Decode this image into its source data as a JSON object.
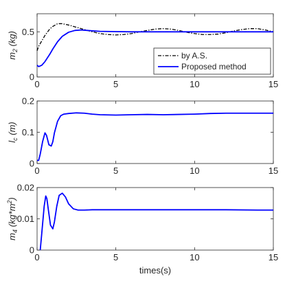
{
  "chart_data": [
    {
      "type": "line",
      "ylabel": {
        "base": "m",
        "sub": "2",
        "unit": " (kg)"
      },
      "xlabel": "",
      "xlim": [
        0,
        15
      ],
      "ylim": [
        0,
        0.7
      ],
      "xticks": [
        "0",
        "5",
        "10",
        "15"
      ],
      "xtick_values": [
        0,
        5,
        10,
        15
      ],
      "yticks": [
        "0",
        "0.5"
      ],
      "ytick_values": [
        0,
        0.5
      ],
      "legend": {
        "position": "bottom-right"
      },
      "series": [
        {
          "name": "by A.S.",
          "color": "#000000",
          "style": "dashdot",
          "x": [
            0,
            0.1,
            0.3,
            0.5,
            0.8,
            1.0,
            1.3,
            1.6,
            2.0,
            2.5,
            3.0,
            3.5,
            4.0,
            4.5,
            5.0,
            5.5,
            6.0,
            6.5,
            7.0,
            7.5,
            8.0,
            8.5,
            9.0,
            9.5,
            10.0,
            10.5,
            11.0,
            11.5,
            12.0,
            12.5,
            13.0,
            13.5,
            14.0,
            14.5,
            15.0
          ],
          "y": [
            0.29,
            0.34,
            0.4,
            0.46,
            0.53,
            0.56,
            0.59,
            0.59,
            0.575,
            0.55,
            0.525,
            0.5,
            0.48,
            0.47,
            0.465,
            0.47,
            0.48,
            0.5,
            0.515,
            0.53,
            0.535,
            0.53,
            0.515,
            0.495,
            0.48,
            0.47,
            0.47,
            0.475,
            0.49,
            0.51,
            0.525,
            0.535,
            0.535,
            0.52,
            0.5
          ]
        },
        {
          "name": "Proposed method",
          "color": "#0000ff",
          "style": "solid",
          "x": [
            0,
            0.1,
            0.3,
            0.5,
            0.8,
            1.0,
            1.3,
            1.6,
            2.0,
            2.4,
            2.8,
            3.2,
            3.6,
            4.0,
            5.0,
            6.0,
            7.0,
            8.0,
            9.0,
            10.0,
            11.0,
            12.0,
            13.0,
            14.0,
            15.0
          ],
          "y": [
            0.13,
            0.115,
            0.13,
            0.17,
            0.25,
            0.31,
            0.39,
            0.45,
            0.495,
            0.515,
            0.52,
            0.515,
            0.51,
            0.505,
            0.502,
            0.5,
            0.5,
            0.5,
            0.5,
            0.5,
            0.5,
            0.5,
            0.5,
            0.5,
            0.5
          ]
        }
      ]
    },
    {
      "type": "line",
      "ylabel": {
        "base": "l",
        "sub": "c",
        "unit": " (m)"
      },
      "xlabel": "",
      "xlim": [
        0,
        15
      ],
      "ylim": [
        0,
        0.2
      ],
      "xticks": [
        "0",
        "5",
        "10",
        "15"
      ],
      "xtick_values": [
        0,
        5,
        10,
        15
      ],
      "yticks": [
        "0",
        "0.1",
        "0.2"
      ],
      "ytick_values": [
        0,
        0.1,
        0.2
      ],
      "series": [
        {
          "color": "#0000ff",
          "style": "solid",
          "x": [
            0,
            0.1,
            0.2,
            0.35,
            0.5,
            0.6,
            0.75,
            0.9,
            1.0,
            1.1,
            1.3,
            1.5,
            1.7,
            2.0,
            2.5,
            3.0,
            3.5,
            4.0,
            5.0,
            6.0,
            7.0,
            8.0,
            9.0,
            10.0,
            11.0,
            12.0,
            13.0,
            14.0,
            15.0
          ],
          "y": [
            0.01,
            0.01,
            0.03,
            0.07,
            0.098,
            0.09,
            0.06,
            0.056,
            0.07,
            0.098,
            0.135,
            0.153,
            0.158,
            0.16,
            0.162,
            0.161,
            0.158,
            0.156,
            0.155,
            0.156,
            0.157,
            0.156,
            0.157,
            0.158,
            0.16,
            0.161,
            0.161,
            0.161,
            0.161
          ]
        }
      ]
    },
    {
      "type": "line",
      "ylabel": {
        "base": "m",
        "sub": "4",
        "unit": " (kg*m",
        "sup": "2",
        "end": ")"
      },
      "xlabel": "times(s)",
      "xlim": [
        0,
        15
      ],
      "ylim": [
        0,
        0.02
      ],
      "xticks": [
        "0",
        "5",
        "10",
        "15"
      ],
      "xtick_values": [
        0,
        5,
        10,
        15
      ],
      "yticks": [
        "0",
        "0.01",
        "0.02"
      ],
      "ytick_values": [
        0,
        0.01,
        0.02
      ],
      "series": [
        {
          "color": "#0000ff",
          "style": "solid",
          "x": [
            0.2,
            0.3,
            0.45,
            0.55,
            0.62,
            0.7,
            0.85,
            1.0,
            1.1,
            1.25,
            1.4,
            1.6,
            1.8,
            2.0,
            2.3,
            2.6,
            3.0,
            3.5,
            4.0,
            5.0,
            6.0,
            8.0,
            10.0,
            12.0,
            14.0,
            15.0
          ],
          "y": [
            0.0,
            0.0055,
            0.014,
            0.0173,
            0.0165,
            0.0135,
            0.008,
            0.0068,
            0.009,
            0.014,
            0.0175,
            0.0182,
            0.017,
            0.0148,
            0.0132,
            0.0128,
            0.0128,
            0.0129,
            0.0129,
            0.0129,
            0.0129,
            0.0129,
            0.0129,
            0.0129,
            0.0128,
            0.0128
          ]
        }
      ]
    }
  ]
}
